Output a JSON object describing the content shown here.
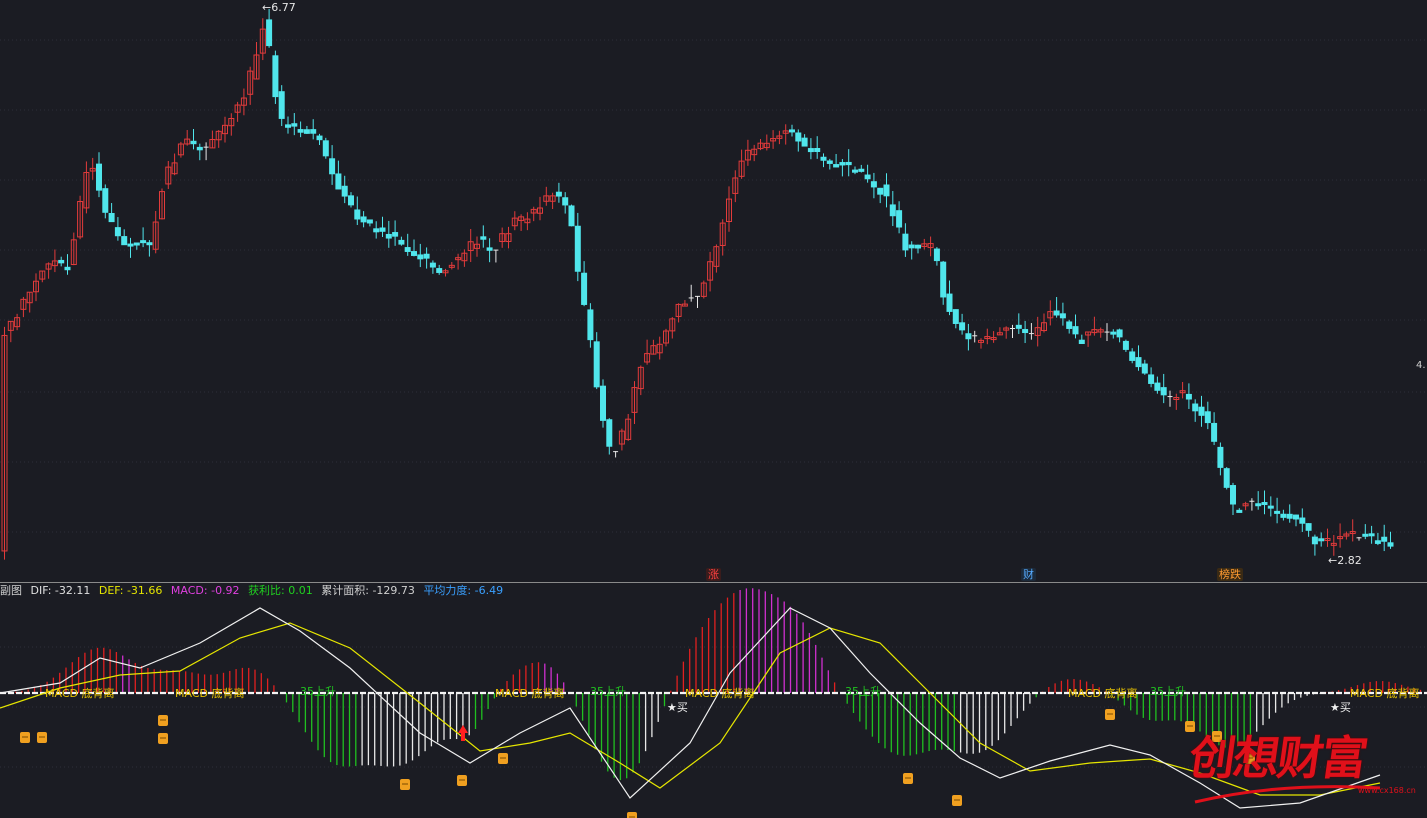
{
  "main_chart": {
    "price_high_label": "←6.77",
    "price_low_label": "←2.82",
    "right_axis_label": "4.",
    "badges": {
      "zhang": "涨",
      "cai": "财",
      "bang": "榜跌"
    },
    "colors": {
      "up": "#e23b3b",
      "down": "#50e6ec",
      "doji": "#e8e8e8",
      "grid": "#2c2e38"
    }
  },
  "sub_chart": {
    "title": "副图",
    "legend": {
      "dif": "DIF: -32.11",
      "def": "DEF: -31.66",
      "macd": "MACD: -0.92",
      "ratio": "获利比: 0.01",
      "area": "累计面积: -129.73",
      "force": "平均力度: -6.49"
    },
    "signal_texts": {
      "divergence": "MACD 底背离",
      "rise": "35上升",
      "buy": "买"
    },
    "colors": {
      "dif": "#f0f0f0",
      "def": "#e6e600",
      "red_bar": "#e02020",
      "magenta_bar": "#d030d0",
      "green_bar": "#20c020",
      "white_bar": "#e8e8e8",
      "marker": "#f0a020"
    }
  },
  "watermark": {
    "text": "创想财富",
    "url": "www.cx168.cn"
  }
}
